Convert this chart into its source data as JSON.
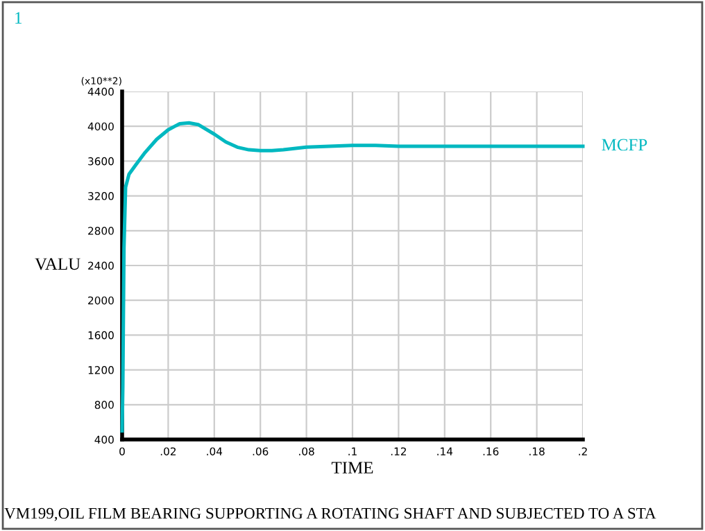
{
  "chart_data": {
    "type": "line",
    "title": "VM199,OIL FILM BEARING SUPPORTING A ROTATING SHAFT AND SUBJECTED TO A STA",
    "xlabel": "TIME",
    "ylabel": "VALU",
    "annotations": [
      "1",
      "(x10**2)"
    ],
    "series": [
      {
        "name": "MCFP",
        "color": "#00b8c0",
        "x": [
          0,
          0.0003,
          0.0008,
          0.0015,
          0.003,
          0.006,
          0.01,
          0.015,
          0.02,
          0.025,
          0.029,
          0.033,
          0.04,
          0.045,
          0.05,
          0.055,
          0.06,
          0.065,
          0.07,
          0.08,
          0.09,
          0.1,
          0.11,
          0.12,
          0.14,
          0.16,
          0.2
        ],
        "values": [
          500,
          1000,
          2600,
          3300,
          3450,
          3560,
          3700,
          3850,
          3960,
          4030,
          4040,
          4020,
          3910,
          3820,
          3760,
          3730,
          3720,
          3720,
          3730,
          3760,
          3770,
          3780,
          3780,
          3770,
          3770,
          3770,
          3770
        ]
      }
    ],
    "xlim": [
      0,
      0.2
    ],
    "ylim": [
      400,
      4400
    ],
    "xticks": [
      0,
      {
        "value": 0.02,
        "label": ".02"
      },
      {
        "value": 0.04,
        "label": ".04"
      },
      {
        "value": 0.06,
        "label": ".06"
      },
      {
        "value": 0.08,
        "label": ".08"
      },
      {
        "value": 0.1,
        "label": ".1"
      },
      {
        "value": 0.12,
        "label": ".12"
      },
      {
        "value": 0.14,
        "label": ".14"
      },
      {
        "value": 0.16,
        "label": ".16"
      },
      {
        "value": 0.18,
        "label": ".18"
      },
      {
        "value": 0.2,
        "label": ".2"
      }
    ],
    "yticks": [
      400,
      800,
      1200,
      1600,
      2000,
      2400,
      2800,
      3200,
      3600,
      4000,
      4400
    ],
    "grid": true,
    "legend": false,
    "marker": "none",
    "line_style": "solid"
  }
}
